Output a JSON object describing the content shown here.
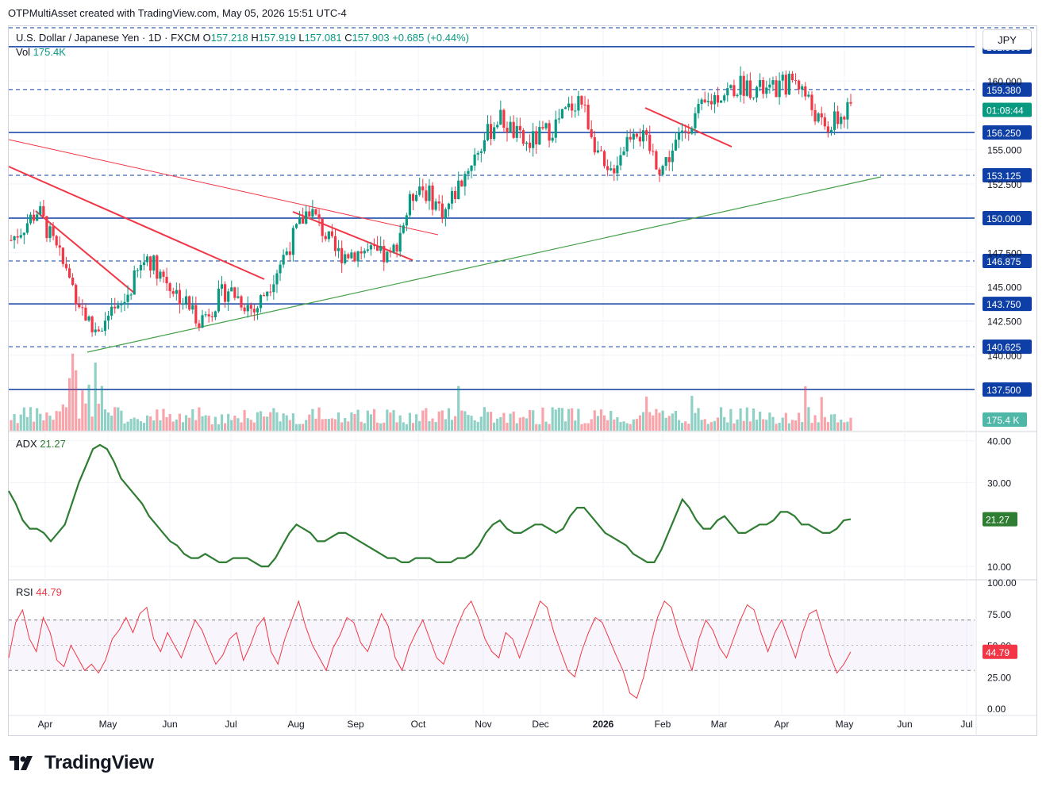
{
  "header": {
    "text": "OTPMultiAsset created with TradingView.com, May 05, 2026 15:51 UTC-4"
  },
  "legend": {
    "symbol": "U.S. Dollar / Japanese Yen · 1D · FXCM",
    "o_label": "O",
    "o_value": "157.218",
    "h_label": "H",
    "h_value": "157.919",
    "l_label": "L",
    "l_value": "157.081",
    "c_label": "C",
    "c_value": "157.903",
    "change": "+0.685 (+0.44%)",
    "vol_label": "Vol",
    "vol_value": "175.4K"
  },
  "currency": "JPY",
  "adx_legend": {
    "label": "ADX",
    "value": "21.27"
  },
  "rsi_legend": {
    "label": "RSI",
    "value": "44.79"
  },
  "footer": {
    "brand": "TradingView"
  },
  "colors": {
    "up": "#089981",
    "down": "#f23645",
    "level": "#0d3fa6",
    "trend_up": "#43a047",
    "trend_down": "#f23645",
    "adx": "#2e7d32",
    "rsi": "#f23645"
  },
  "chart_data": {
    "type": "candlestick",
    "symbol": "USDJPY",
    "interval": "1D",
    "price_axis_ticks": [
      "160.000",
      "155.000",
      "152.500",
      "147.500",
      "145.000",
      "142.500",
      "140.000"
    ],
    "price_range": [
      134.5,
      164
    ],
    "time_axis_labels": [
      "Apr",
      "May",
      "Jun",
      "Jul",
      "Aug",
      "Sep",
      "Oct",
      "Nov",
      "Dec",
      "2026",
      "Feb",
      "Mar",
      "Apr",
      "May",
      "Jun",
      "Jul"
    ],
    "price_path": [
      {
        "m": "Apr",
        "p": 148.4
      },
      {
        "m": "Apr",
        "p": 150.6
      },
      {
        "m": "Apr",
        "p": 146.2
      },
      {
        "m": "Apr",
        "p": 141.8
      },
      {
        "m": "May",
        "p": 143.2
      },
      {
        "m": "May",
        "p": 147.3
      },
      {
        "m": "May",
        "p": 144.8
      },
      {
        "m": "Jun",
        "p": 142.6
      },
      {
        "m": "Jun",
        "p": 144.9
      },
      {
        "m": "Jul",
        "p": 143.2
      },
      {
        "m": "Jul",
        "p": 147.0
      },
      {
        "m": "Aug",
        "p": 150.8
      },
      {
        "m": "Aug",
        "p": 147.4
      },
      {
        "m": "Sep",
        "p": 147.6
      },
      {
        "m": "Sep",
        "p": 147.0
      },
      {
        "m": "Oct",
        "p": 152.6
      },
      {
        "m": "Oct",
        "p": 150.4
      },
      {
        "m": "Nov",
        "p": 154.2
      },
      {
        "m": "Nov",
        "p": 157.4
      },
      {
        "m": "Dec",
        "p": 155.3
      },
      {
        "m": "Dec",
        "p": 156.6
      },
      {
        "m": "2026",
        "p": 158.9
      },
      {
        "m": "Feb",
        "p": 152.8
      },
      {
        "m": "Feb",
        "p": 156.8
      },
      {
        "m": "Feb",
        "p": 153.6
      },
      {
        "m": "Mar",
        "p": 156.9
      },
      {
        "m": "Mar",
        "p": 158.9
      },
      {
        "m": "Apr",
        "p": 159.7
      },
      {
        "m": "Apr",
        "p": 159.2
      },
      {
        "m": "May",
        "p": 160.2
      },
      {
        "m": "May",
        "p": 156.4
      },
      {
        "m": "May",
        "p": 157.9
      }
    ],
    "levels": [
      {
        "value": 162.5,
        "label": "162.500",
        "style": "solid"
      },
      {
        "value": 159.38,
        "label": "159.380",
        "style": "dashed"
      },
      {
        "value": 156.25,
        "label": "156.250",
        "style": "solid"
      },
      {
        "value": 153.125,
        "label": "153.125",
        "style": "dashed"
      },
      {
        "value": 150.0,
        "label": "150.000",
        "style": "solid"
      },
      {
        "value": 146.875,
        "label": "146.875",
        "style": "dashed"
      },
      {
        "value": 143.75,
        "label": "143.750",
        "style": "solid"
      },
      {
        "value": 140.625,
        "label": "140.625",
        "style": "dashed"
      },
      {
        "value": 137.5,
        "label": "137.500",
        "style": "solid"
      }
    ],
    "last_price_countdown": "01:08:44",
    "volume_label": "175.4 K",
    "trendlines": [
      {
        "color": "trend_up",
        "from": {
          "m": "Apr",
          "p": 140.0
        },
        "to": {
          "m": "May",
          "p": 153.9
        }
      },
      {
        "color": "trend_down",
        "from": {
          "m": "Apr",
          "p": 155.9
        },
        "to": {
          "m": "Oct",
          "p": 149.4
        }
      },
      {
        "color": "trend_down",
        "from": {
          "m": "Apr",
          "p": 153.4
        },
        "to": {
          "m": "Jul",
          "p": 145.9
        }
      },
      {
        "color": "trend_down",
        "from": {
          "m": "Apr",
          "p": 151.0
        },
        "to": {
          "m": "May",
          "p": 144.8
        }
      },
      {
        "color": "trend_down",
        "from": {
          "m": "Aug",
          "p": 151.1
        },
        "to": {
          "m": "Sep",
          "p": 147.3
        }
      },
      {
        "color": "trend_down",
        "from": {
          "m": "2026",
          "p": 159.4
        },
        "to": {
          "m": "Mar",
          "p": 156.2
        }
      }
    ],
    "adx": {
      "ticks": [
        "40.00",
        "30.00",
        "10.00"
      ],
      "range": [
        7,
        42
      ],
      "last": "21.27",
      "values": [
        28,
        25,
        21,
        19,
        19,
        18,
        16,
        18,
        20,
        25,
        30,
        34,
        38,
        39,
        38,
        35,
        31,
        29,
        27,
        25,
        22,
        20,
        18,
        16,
        15,
        13,
        12,
        12,
        13,
        12,
        11,
        11,
        12,
        12,
        12,
        11,
        10,
        10,
        12,
        15,
        18,
        20,
        19,
        18,
        16,
        16,
        17,
        18,
        18,
        17,
        16,
        15,
        14,
        13,
        12,
        12,
        11,
        11,
        12,
        12,
        12,
        11,
        11,
        11,
        12,
        12,
        13,
        15,
        18,
        20,
        21,
        19,
        18,
        18,
        19,
        20,
        20,
        19,
        18,
        19,
        22,
        24,
        24,
        22,
        20,
        18,
        17,
        16,
        15,
        13,
        12,
        11,
        11,
        14,
        18,
        22,
        26,
        24,
        21,
        19,
        19,
        21,
        22,
        20,
        18,
        18,
        19,
        20,
        20,
        21,
        23,
        23,
        22,
        20,
        20,
        19,
        18,
        18,
        19,
        21,
        21.27
      ]
    },
    "rsi": {
      "ticks": [
        "100.00",
        "75.00",
        "50.00",
        "25.00",
        "0.00"
      ],
      "bands": [
        70,
        30
      ],
      "range": [
        0,
        100
      ],
      "last": "44.79",
      "values": [
        40,
        68,
        78,
        55,
        45,
        72,
        60,
        38,
        33,
        50,
        40,
        30,
        35,
        28,
        38,
        55,
        62,
        72,
        60,
        75,
        80,
        55,
        45,
        60,
        50,
        40,
        55,
        70,
        62,
        48,
        35,
        42,
        55,
        60,
        38,
        50,
        65,
        72,
        45,
        35,
        55,
        70,
        85,
        65,
        50,
        40,
        30,
        48,
        58,
        72,
        68,
        52,
        45,
        60,
        75,
        65,
        40,
        30,
        48,
        60,
        70,
        55,
        40,
        35,
        50,
        65,
        78,
        85,
        72,
        55,
        45,
        40,
        60,
        55,
        40,
        55,
        70,
        85,
        80,
        60,
        45,
        30,
        25,
        45,
        60,
        72,
        68,
        55,
        42,
        30,
        12,
        8,
        25,
        50,
        72,
        85,
        80,
        60,
        45,
        30,
        55,
        70,
        62,
        48,
        40,
        55,
        70,
        82,
        78,
        60,
        45,
        60,
        70,
        55,
        40,
        60,
        75,
        78,
        60,
        42,
        28,
        35,
        44.79
      ]
    }
  }
}
